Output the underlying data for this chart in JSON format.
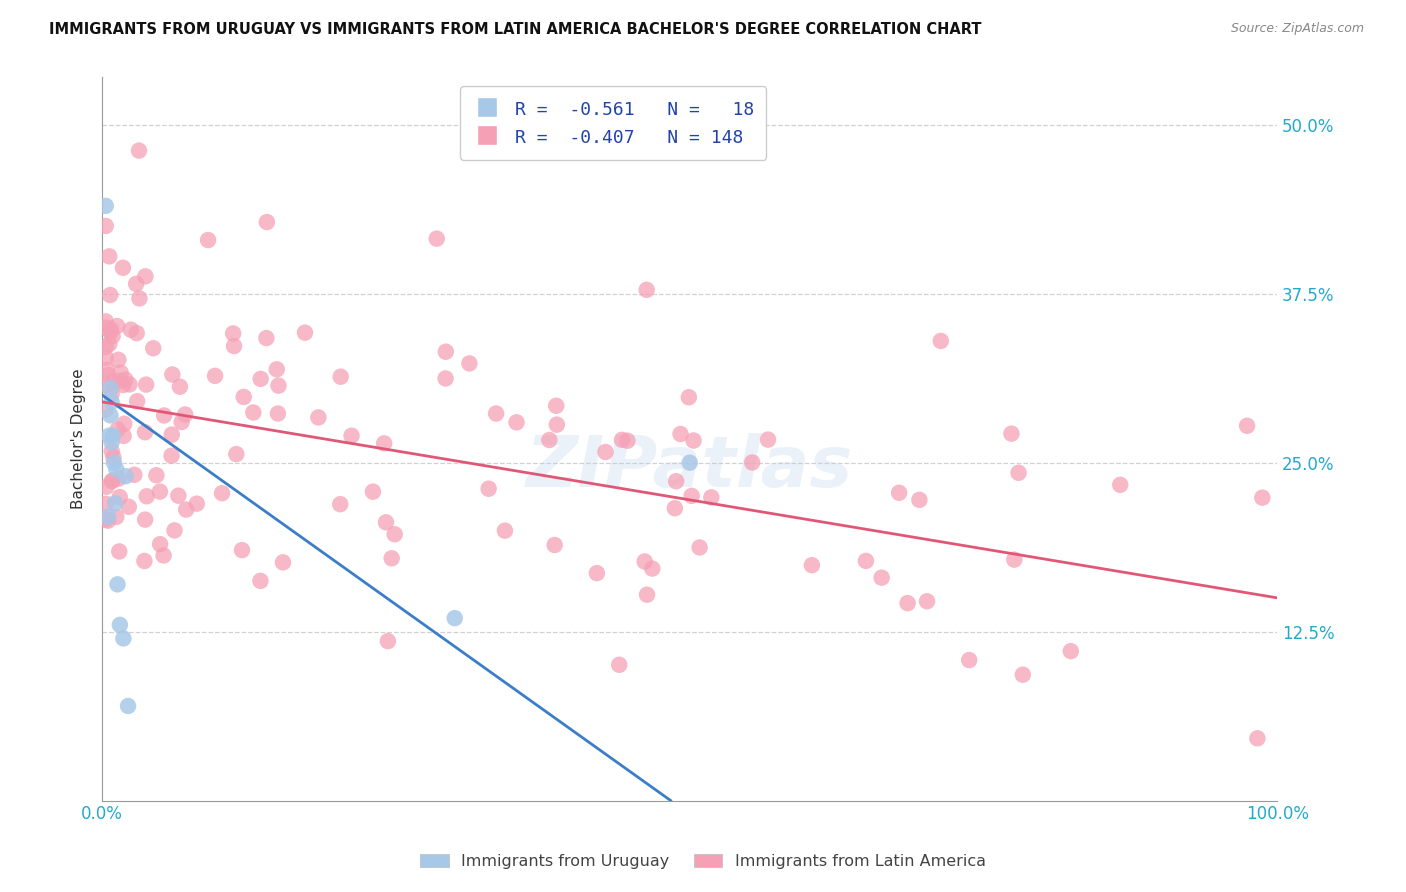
{
  "title": "IMMIGRANTS FROM URUGUAY VS IMMIGRANTS FROM LATIN AMERICA BACHELOR'S DEGREE CORRELATION CHART",
  "source": "Source: ZipAtlas.com",
  "ylabel": "Bachelor's Degree",
  "watermark": "ZIPatlas",
  "uruguay_R": -0.561,
  "uruguay_N": 18,
  "latam_R": -0.407,
  "latam_N": 148,
  "uruguay_color": "#a8c8e8",
  "latam_color": "#f5a0b5",
  "uruguay_line_color": "#3a7ec8",
  "latam_line_color": "#e05878",
  "background_color": "#ffffff",
  "grid_color": "#cccccc",
  "legend_text_color": "#2244aa",
  "axis_tick_color": "#22aacc",
  "xlim": [
    0.0,
    1.0
  ],
  "ylim": [
    0.0,
    0.535
  ],
  "yticks": [
    0.0,
    0.125,
    0.25,
    0.375,
    0.5
  ],
  "ytick_labels": [
    "",
    "12.5%",
    "25.0%",
    "37.5%",
    "50.0%"
  ],
  "xtick_labels": [
    "0.0%",
    "100.0%"
  ],
  "uruguay_line_intercept": 0.3,
  "uruguay_line_slope": -0.62,
  "latam_line_intercept": 0.295,
  "latam_line_slope": -0.145,
  "uruguay_seed": 77,
  "latam_seed": 42
}
